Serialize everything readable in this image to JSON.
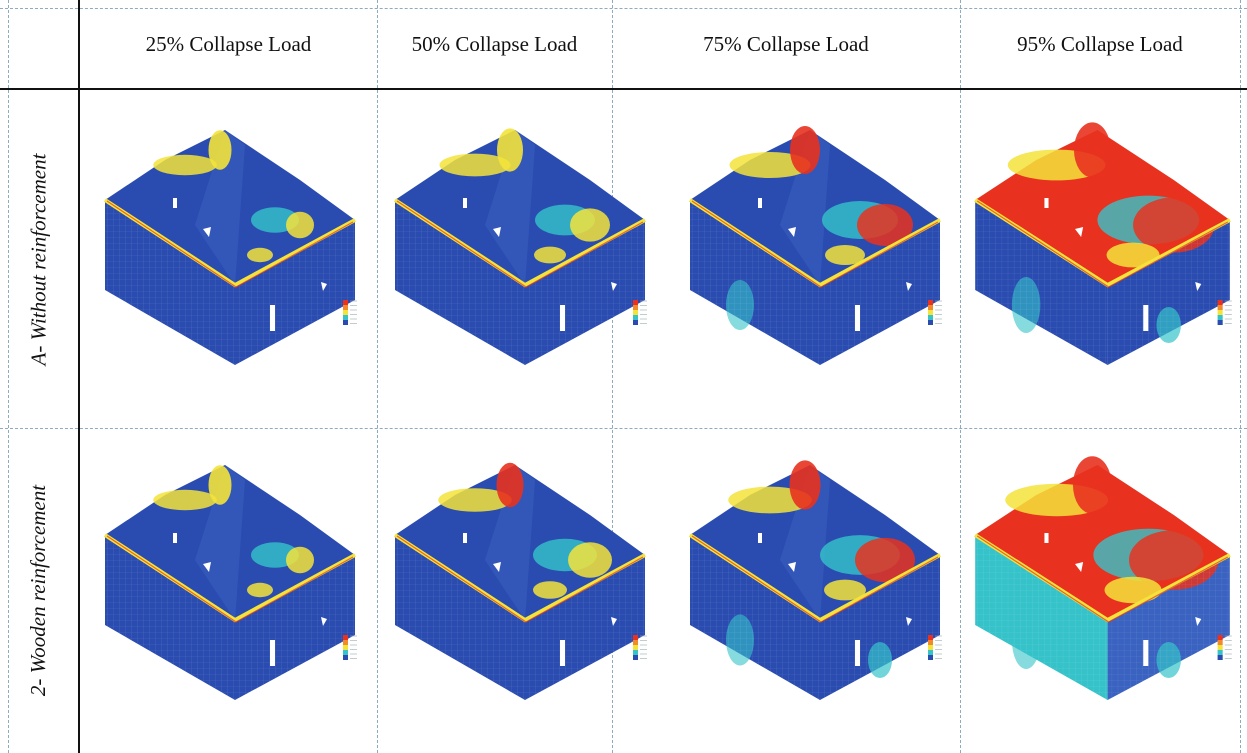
{
  "columns": [
    "25% Collapse Load",
    "50% Collapse Load",
    "75% Collapse Load",
    "95% Collapse Load"
  ],
  "rows": [
    "A- Without reinforcement",
    "2- Wooden reinforcement"
  ],
  "colors": {
    "low": "#2a4cb0",
    "mid": "#35c3c9",
    "yellow": "#f3e33b",
    "high": "#e8321f",
    "grid": "#8fa9bf"
  },
  "stress_levels": [
    [
      0.15,
      0.3,
      0.5,
      0.8
    ],
    [
      0.15,
      0.35,
      0.55,
      0.9
    ]
  ]
}
